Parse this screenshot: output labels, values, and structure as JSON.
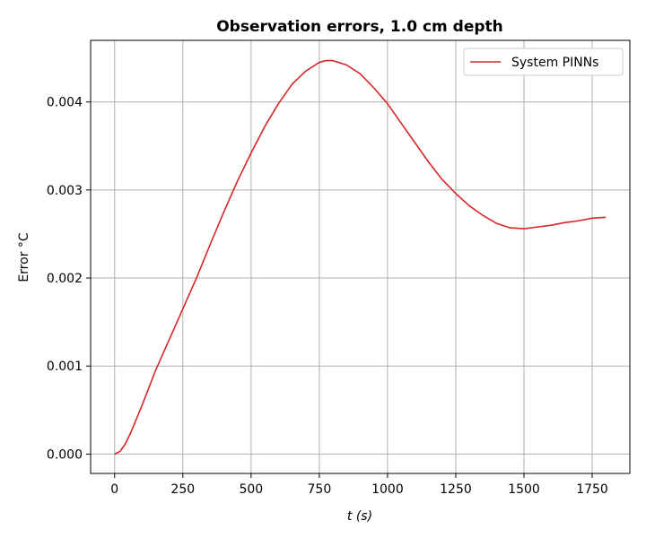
{
  "chart_data": {
    "type": "line",
    "title": "Observation errors, 1.0 cm depth",
    "xlabel": "t (s)",
    "ylabel": "Error °C",
    "xlim": [
      -88,
      1888
    ],
    "ylim": [
      -0.00022,
      0.0047
    ],
    "xticks": [
      0,
      250,
      500,
      750,
      1000,
      1250,
      1500,
      1750
    ],
    "xtick_labels": [
      "0",
      "250",
      "500",
      "750",
      "1000",
      "1250",
      "1500",
      "1750"
    ],
    "yticks": [
      0.0,
      0.001,
      0.002,
      0.003,
      0.004
    ],
    "ytick_labels": [
      "0.000",
      "0.001",
      "0.002",
      "0.003",
      "0.004"
    ],
    "grid": true,
    "legend_position": "upper right",
    "series": [
      {
        "name": "System PINNs",
        "color": "#d62728",
        "x": [
          0,
          20,
          40,
          60,
          80,
          100,
          150,
          200,
          250,
          300,
          350,
          400,
          450,
          500,
          550,
          600,
          650,
          700,
          750,
          775,
          800,
          850,
          900,
          950,
          1000,
          1050,
          1100,
          1150,
          1200,
          1250,
          1300,
          1350,
          1400,
          1450,
          1500,
          1550,
          1600,
          1650,
          1700,
          1750,
          1800
        ],
        "y": [
          0.0,
          3e-05,
          0.00012,
          0.00025,
          0.0004,
          0.00055,
          0.00095,
          0.0013,
          0.00165,
          0.002,
          0.00238,
          0.00275,
          0.0031,
          0.00342,
          0.00372,
          0.00398,
          0.0042,
          0.00435,
          0.00445,
          0.00447,
          0.00447,
          0.00442,
          0.00432,
          0.00416,
          0.00398,
          0.00376,
          0.00354,
          0.00332,
          0.00312,
          0.00296,
          0.00282,
          0.00271,
          0.00262,
          0.00257,
          0.00256,
          0.00258,
          0.0026,
          0.00263,
          0.00265,
          0.00268,
          0.00269
        ]
      }
    ]
  }
}
